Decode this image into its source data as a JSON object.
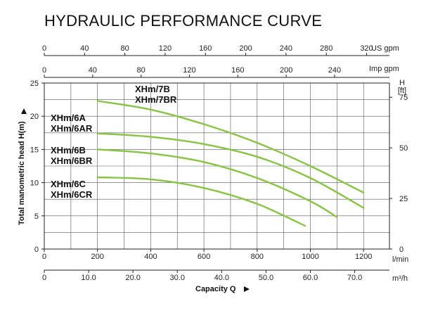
{
  "title": "HYDRAULIC PERFORMANCE CURVE",
  "chart_data": {
    "type": "line",
    "title": "HYDRAULIC PERFORMANCE CURVE",
    "xlabel": "Capacity Q",
    "ylabel": "Total manometric head H(m)",
    "grid": true,
    "xlim": [
      0,
      1300
    ],
    "ylim": [
      0,
      25
    ],
    "x_unit": "l/min",
    "y_unit": "",
    "x_ticks": [
      0,
      200,
      400,
      600,
      800,
      1000,
      1200
    ],
    "y_ticks": [
      0,
      5,
      10,
      15,
      20,
      25
    ],
    "secondary_axes": {
      "us_gpm": {
        "unit": "US gpm",
        "ticks": [
          0,
          40,
          80,
          120,
          160,
          200,
          240,
          280,
          320
        ],
        "per_lmin": 0.26417
      },
      "imp_gpm": {
        "unit": "Imp gpm",
        "ticks": [
          0,
          40,
          80,
          120,
          160,
          200,
          240
        ],
        "per_lmin": 0.21997
      },
      "m3h": {
        "unit": "m³/h",
        "ticks": [
          "0",
          "10.0",
          "20.0",
          "30.0",
          "40.0",
          "50.0",
          "60.0",
          "70.0"
        ],
        "values": [
          0,
          10,
          20,
          30,
          40,
          50,
          60,
          70
        ],
        "per_lmin": 0.06
      },
      "feet": {
        "unit_line1": "H",
        "unit_line2": "[ft]",
        "ticks": [
          0,
          25,
          50,
          75
        ],
        "per_m": 3.2808
      }
    },
    "series": [
      {
        "name": "XHm/7B",
        "label_lines": [
          "XHm/7B",
          "XHm/7BR"
        ],
        "x": [
          200,
          400,
          600,
          800,
          1000,
          1200
        ],
        "y": [
          22.3,
          21.0,
          18.8,
          16.0,
          12.5,
          8.5
        ]
      },
      {
        "name": "XHm/6A",
        "label_lines": [
          "XHm/6A",
          "XHm/6AR"
        ],
        "x": [
          200,
          400,
          600,
          800,
          1000,
          1200
        ],
        "y": [
          17.4,
          16.9,
          15.8,
          13.9,
          10.7,
          6.2
        ]
      },
      {
        "name": "XHm/6B",
        "label_lines": [
          "XHm/6B",
          "XHm/6BR"
        ],
        "x": [
          200,
          400,
          600,
          800,
          1000,
          1100
        ],
        "y": [
          15.0,
          14.4,
          13.1,
          10.7,
          7.2,
          4.8
        ]
      },
      {
        "name": "XHm/6C",
        "label_lines": [
          "XHm/6C",
          "XHm/6CR"
        ],
        "x": [
          200,
          400,
          600,
          800,
          980
        ],
        "y": [
          10.8,
          10.5,
          9.2,
          6.8,
          3.5
        ]
      }
    ]
  }
}
